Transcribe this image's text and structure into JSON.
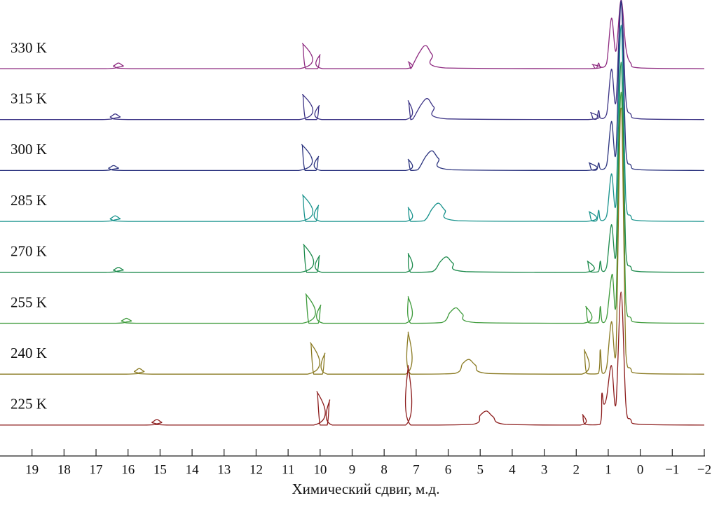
{
  "chart_data": {
    "type": "line",
    "xlabel": "Химический сдвиг, м.д.",
    "xlim": [
      20,
      -2
    ],
    "xticks": [
      19,
      18,
      17,
      16,
      15,
      14,
      13,
      12,
      11,
      10,
      9,
      8,
      7,
      6,
      5,
      4,
      3,
      2,
      1,
      0,
      {
        "value": -1,
        "label": "−1"
      },
      {
        "value": -2,
        "label": "−2"
      }
    ],
    "series": [
      {
        "name": "330 K",
        "color": "#8e2a80",
        "x": [
          20,
          16.7,
          16.45,
          16.3,
          16.15,
          15.9,
          10.65,
          10.55,
          10.45,
          10.08,
          10.0,
          9.92,
          7.33,
          7.25,
          7.17,
          7.15,
          6.9,
          6.7,
          6.5,
          6.1,
          1.58,
          1.5,
          1.42,
          1.36,
          1.3,
          1.24,
          1.05,
          0.9,
          0.76,
          0.6,
          0.45,
          0.3,
          0,
          -2
        ],
        "values": [
          0,
          0,
          4,
          8,
          4,
          0,
          0,
          36,
          0,
          0,
          20,
          0,
          0,
          10,
          0,
          1,
          23,
          33,
          20,
          1,
          0,
          6,
          1,
          1,
          8,
          2,
          8,
          72,
          25,
          98,
          30,
          8,
          1,
          0
        ]
      },
      {
        "name": "315 K",
        "color": "#3b3285",
        "x": [
          20,
          16.8,
          16.55,
          16.4,
          16.25,
          16.0,
          10.65,
          10.55,
          10.45,
          10.11,
          10.03,
          9.95,
          7.33,
          7.25,
          7.17,
          7.1,
          6.85,
          6.65,
          6.45,
          6.05,
          1.63,
          1.55,
          1.47,
          1.36,
          1.3,
          1.24,
          1.05,
          0.9,
          0.76,
          0.6,
          0.45,
          0.3,
          0,
          -2
        ],
        "values": [
          0,
          0,
          4,
          8,
          4,
          0,
          0,
          36,
          0,
          0,
          20,
          0,
          0,
          27,
          0,
          1,
          21,
          30,
          18,
          1,
          0,
          10,
          1,
          1,
          13,
          2,
          8,
          72,
          25,
          170,
          30,
          8,
          1,
          0
        ]
      },
      {
        "name": "300 K",
        "color": "#2a327e",
        "x": [
          20,
          16.85,
          16.6,
          16.45,
          16.3,
          16.05,
          10.67,
          10.57,
          10.47,
          10.13,
          10.05,
          9.97,
          7.33,
          7.25,
          7.17,
          6.95,
          6.7,
          6.5,
          6.3,
          5.9,
          1.68,
          1.6,
          1.52,
          1.36,
          1.3,
          1.24,
          1.05,
          0.9,
          0.76,
          0.6,
          0.45,
          0.3,
          0,
          -2
        ],
        "values": [
          0,
          0,
          3.5,
          7,
          3.5,
          0,
          0,
          37,
          0,
          0,
          20,
          0,
          0,
          16,
          0,
          1,
          20,
          28,
          17,
          1,
          0,
          11,
          1,
          1,
          11,
          2,
          8,
          70,
          25,
          240,
          30,
          8,
          1,
          0
        ]
      },
      {
        "name": "285 K",
        "color": "#17928c",
        "x": [
          20,
          16.8,
          16.55,
          16.4,
          16.25,
          16.0,
          10.65,
          10.55,
          10.45,
          10.13,
          10.05,
          9.97,
          7.33,
          7.25,
          7.17,
          6.75,
          6.5,
          6.3,
          6.1,
          5.7,
          1.68,
          1.6,
          1.52,
          1.36,
          1.3,
          1.24,
          1.05,
          0.9,
          0.76,
          0.6,
          0.45,
          0.3,
          0,
          -2
        ],
        "values": [
          0,
          0,
          4,
          8,
          4,
          0,
          0,
          38,
          0,
          0,
          23,
          0,
          0,
          20,
          0,
          1,
          18,
          26,
          16,
          1,
          0,
          14,
          1,
          1,
          16,
          2,
          8,
          68,
          25,
          280,
          30,
          8,
          1,
          0
        ]
      },
      {
        "name": "270 K",
        "color": "#1c8a4c",
        "x": [
          20,
          16.7,
          16.45,
          16.3,
          16.15,
          15.9,
          10.62,
          10.52,
          10.42,
          10.1,
          10.02,
          9.94,
          7.33,
          7.25,
          7.17,
          6.5,
          6.25,
          6.05,
          5.85,
          5.45,
          1.73,
          1.65,
          1.57,
          1.31,
          1.25,
          1.19,
          1.05,
          0.9,
          0.76,
          0.6,
          0.45,
          0.3,
          0,
          -2
        ],
        "values": [
          0,
          0,
          3.5,
          7,
          3.5,
          0,
          0,
          40,
          0,
          0,
          24,
          0,
          0,
          27,
          0,
          1,
          15,
          22,
          13,
          1,
          0,
          16,
          1,
          1,
          16,
          2,
          8,
          68,
          25,
          300,
          30,
          8,
          1,
          0
        ]
      },
      {
        "name": "255 K",
        "color": "#3d9a3a",
        "x": [
          20,
          16.45,
          16.2,
          16.05,
          15.9,
          15.65,
          10.55,
          10.45,
          10.35,
          10.06,
          9.98,
          9.9,
          7.33,
          7.25,
          7.17,
          6.2,
          5.95,
          5.75,
          5.55,
          5.15,
          1.78,
          1.7,
          1.62,
          1.31,
          1.25,
          1.19,
          1.05,
          0.88,
          0.76,
          0.6,
          0.45,
          0.3,
          0,
          -2
        ],
        "values": [
          0,
          0,
          3.5,
          7,
          3.5,
          0,
          0,
          42,
          0,
          0,
          26,
          0,
          0,
          38,
          0,
          1,
          15,
          22,
          13,
          1,
          0,
          24,
          1,
          1,
          24,
          2,
          8,
          70,
          25,
          330,
          30,
          8,
          1,
          0
        ]
      },
      {
        "name": "240 K",
        "color": "#8a7a22",
        "x": [
          20,
          16.05,
          15.8,
          15.65,
          15.5,
          15.25,
          10.4,
          10.3,
          10.2,
          9.93,
          9.85,
          9.77,
          7.33,
          7.25,
          7.17,
          5.8,
          5.55,
          5.35,
          5.15,
          4.75,
          1.83,
          1.75,
          1.67,
          1.31,
          1.25,
          1.19,
          1.05,
          0.9,
          0.76,
          0.6,
          0.45,
          0.3,
          0,
          -2
        ],
        "values": [
          0,
          0,
          4,
          8,
          4,
          0,
          0,
          45,
          0,
          0,
          30,
          0,
          0,
          60,
          0,
          1,
          15,
          21,
          13,
          1,
          0,
          35,
          1,
          1,
          35,
          2,
          10,
          75,
          30,
          380,
          30,
          8,
          1,
          0
        ]
      },
      {
        "name": "225 K",
        "color": "#8c1c1c",
        "x": [
          20,
          15.5,
          15.25,
          15.1,
          14.95,
          14.7,
          10.2,
          10.1,
          10.0,
          9.78,
          9.7,
          9.62,
          7.33,
          7.25,
          7.17,
          5.25,
          5.0,
          4.8,
          4.6,
          4.2,
          1.88,
          1.8,
          1.72,
          1.26,
          1.2,
          1.14,
          1.05,
          0.9,
          0.76,
          0.6,
          0.45,
          0.3,
          0,
          -2
        ],
        "values": [
          0,
          0,
          4,
          8,
          4,
          0,
          0,
          48,
          0,
          0,
          36,
          0,
          0,
          85,
          0,
          1,
          14,
          20,
          12,
          1,
          0,
          15,
          1,
          1,
          45,
          30,
          40,
          85,
          30,
          190,
          30,
          8,
          1,
          0
        ]
      }
    ]
  }
}
